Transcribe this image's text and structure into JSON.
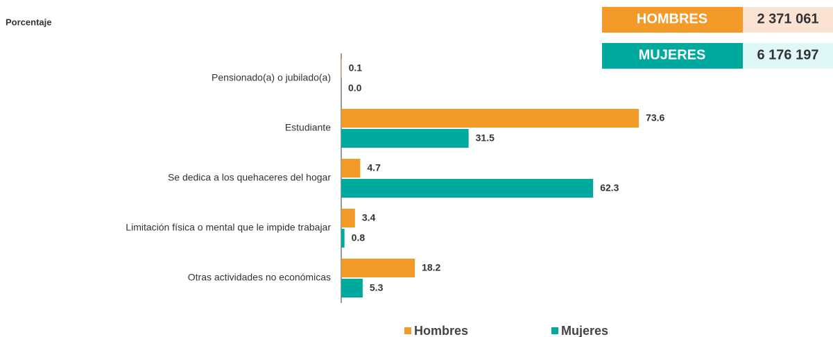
{
  "chart_data": {
    "type": "hbar",
    "y_label": "Porcentaje",
    "categories": [
      "Pensionado(a) o jubilado(a)",
      "Estudiante",
      "Se dedica a los quehaceres del hogar",
      "Limitación física o mental que le impide trabajar",
      "Otras actividades no económicas"
    ],
    "series": [
      {
        "name": "Hombres",
        "color": "#f39a28",
        "values": [
          0.1,
          73.6,
          4.7,
          3.4,
          18.2
        ],
        "value_labels": [
          "0.1",
          "73.6",
          "4.7",
          "3.4",
          "18.2"
        ]
      },
      {
        "name": "Mujeres",
        "color": "#00a99d",
        "values": [
          0.0,
          31.5,
          62.3,
          0.8,
          5.3
        ],
        "value_labels": [
          "0.0",
          "31.5",
          "62.3",
          "0.8",
          "5.3"
        ]
      }
    ],
    "xlim": [
      0,
      100
    ],
    "totals": [
      {
        "name": "HOMBRES",
        "value": 2371061,
        "label": "2 371 061",
        "color": "#f39a28",
        "background": "#fbe3d3"
      },
      {
        "name": "MUJERES",
        "value": 6176197,
        "label": "6 176 197",
        "color": "#00a99d",
        "background": "#dff7f6"
      }
    ],
    "legend": "bottom"
  }
}
